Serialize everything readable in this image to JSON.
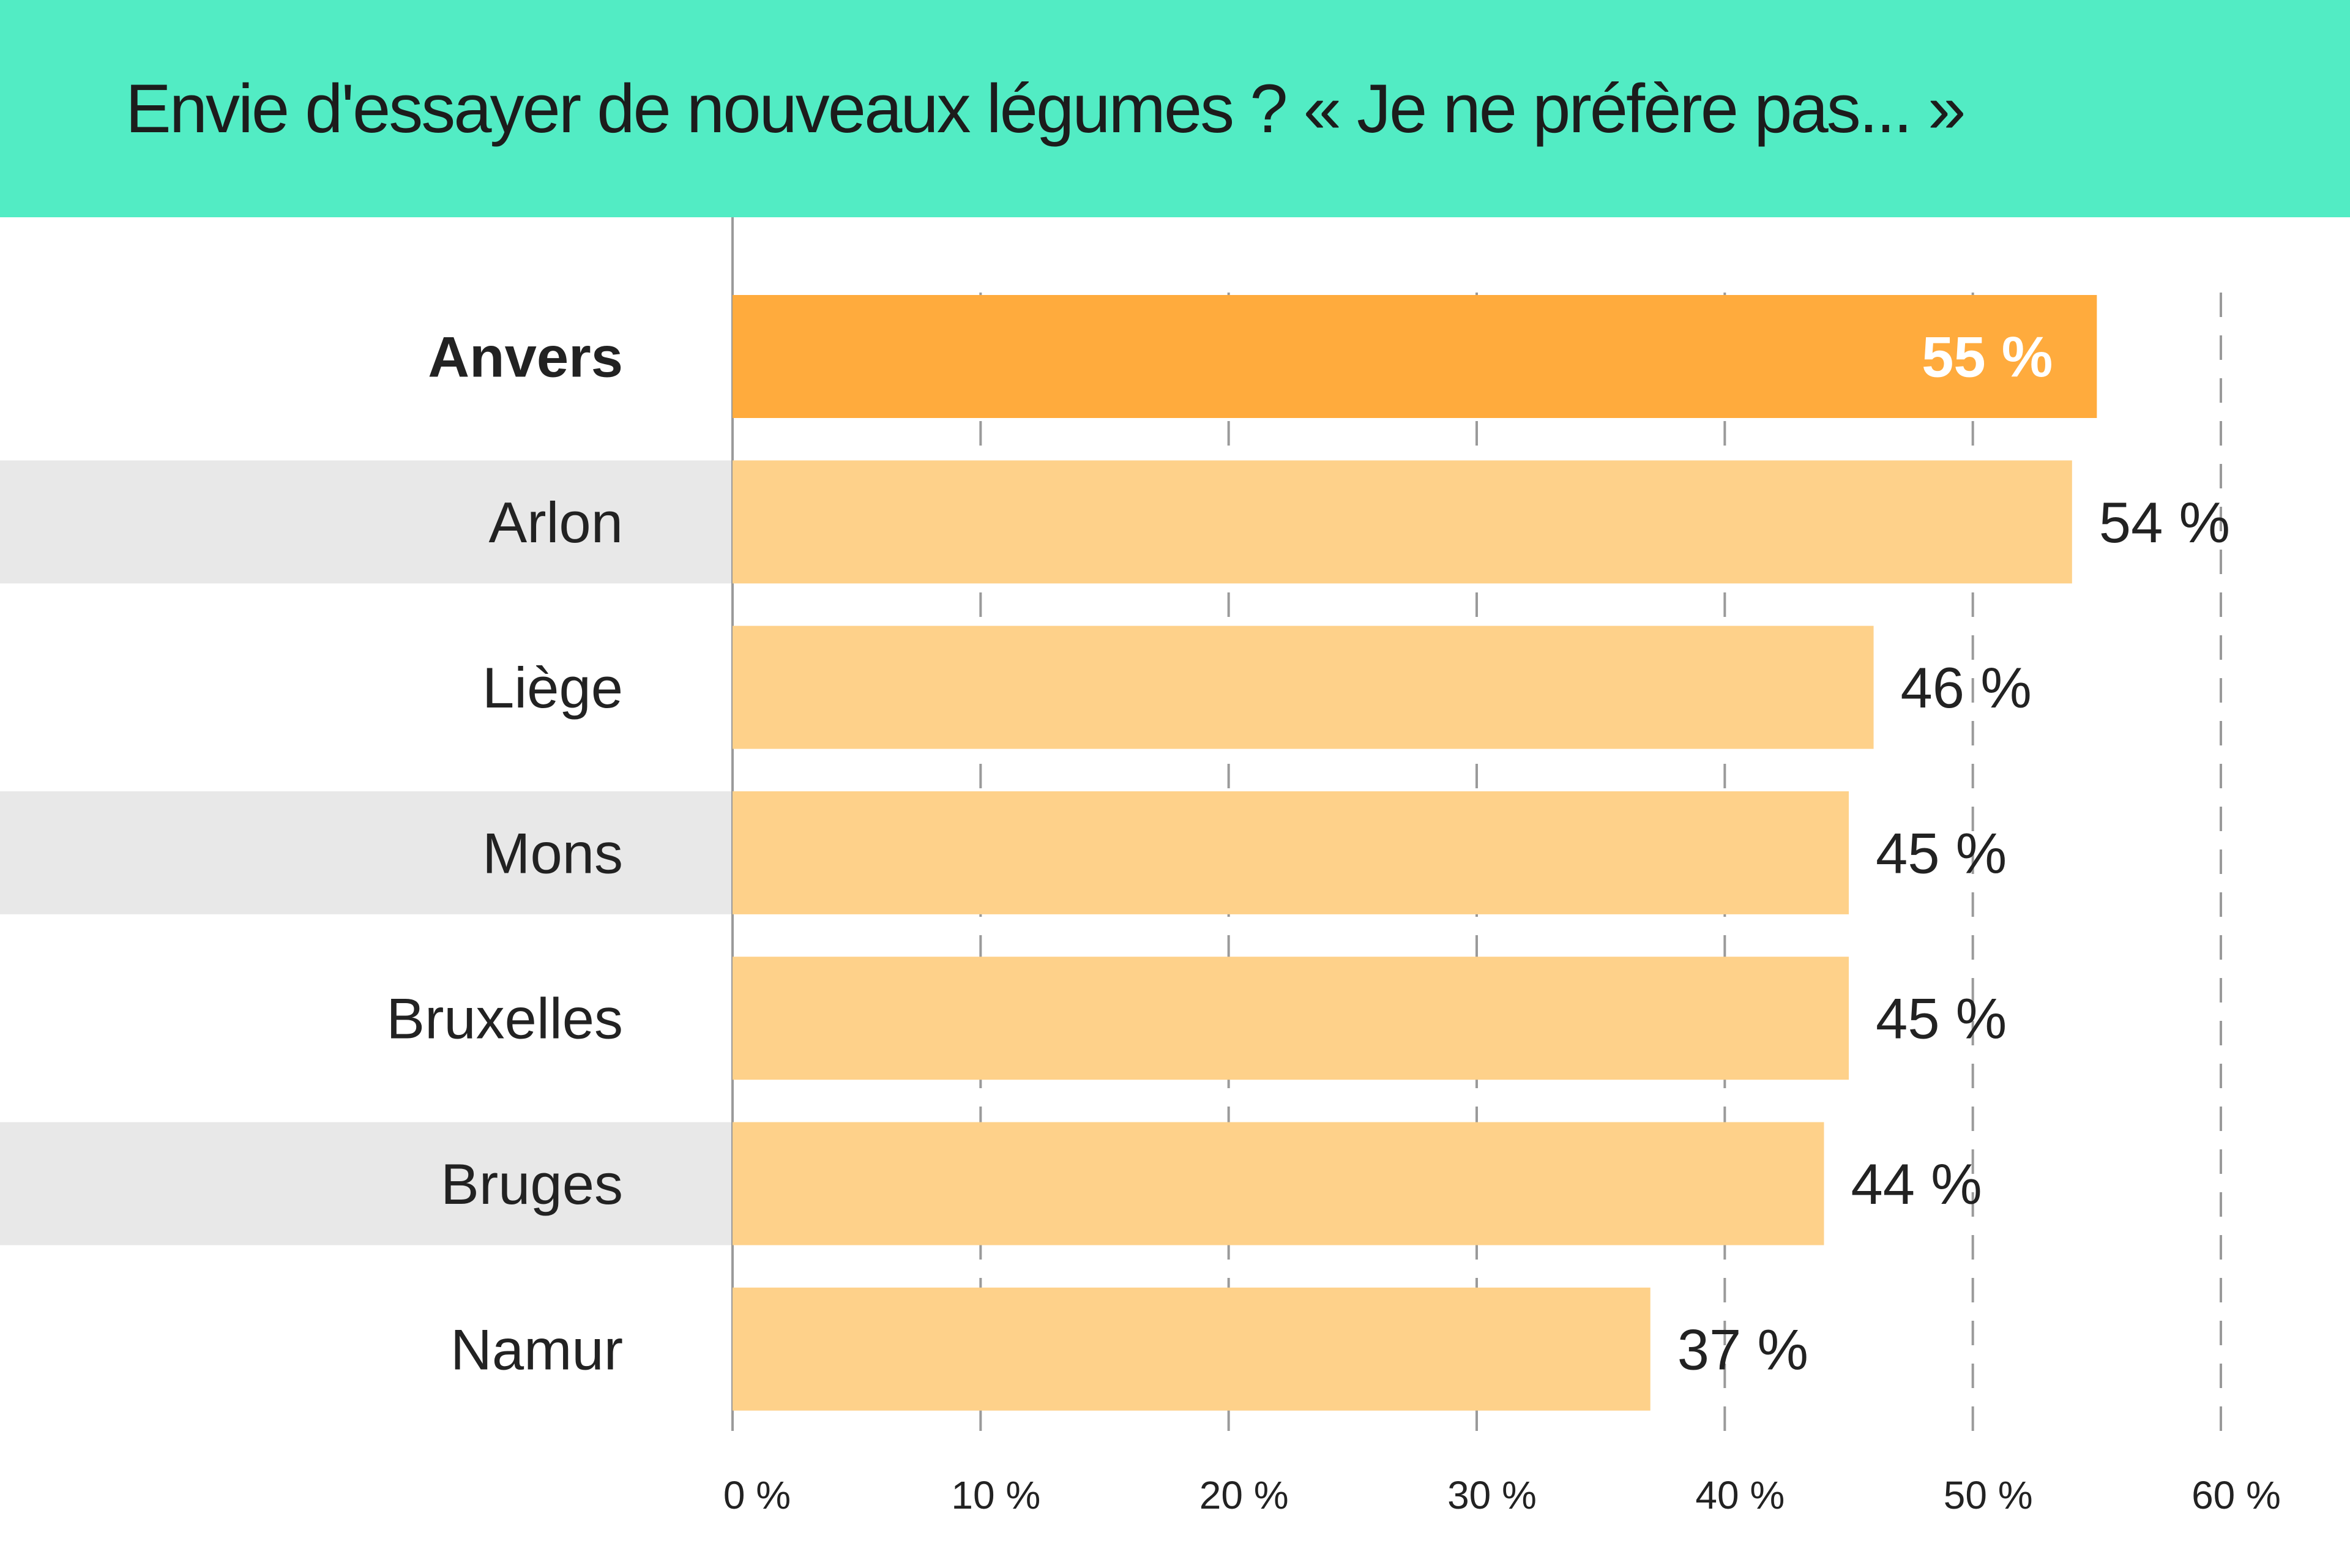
{
  "chart_data": {
    "type": "bar",
    "orientation": "horizontal",
    "title": "Envie d'essayer de nouveaux légumes ? « Je ne préfère pas... »",
    "categories": [
      "Anvers",
      "Arlon",
      "Liège",
      "Mons",
      "Bruxelles",
      "Bruges",
      "Namur"
    ],
    "values": [
      55,
      54,
      46,
      45,
      45,
      44,
      37
    ],
    "value_labels": [
      "55 %",
      "54 %",
      "46 %",
      "45 %",
      "45 %",
      "44 %",
      "37 %"
    ],
    "highlighted_category": "Anvers",
    "xlim": [
      0,
      60
    ],
    "x_ticks": [
      0,
      10,
      20,
      30,
      40,
      50,
      60
    ],
    "x_tick_labels": [
      "0 %",
      "10 %",
      "20 %",
      "30 %",
      "40 %",
      "50 %",
      "60 %"
    ],
    "grid": "vertical dashed",
    "xlabel": "",
    "ylabel": "",
    "colors": {
      "header": "#52ecc4",
      "highlight_bar": "#ffab3d",
      "bar": "#fed18a",
      "row_band": "#e8e8e8",
      "text": "#222222"
    }
  }
}
